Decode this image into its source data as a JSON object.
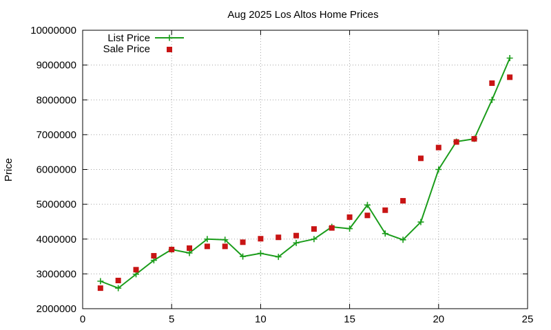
{
  "chart_data": {
    "type": "line",
    "title": "Aug 2025 Los Altos Home Prices",
    "xlabel": "",
    "ylabel": "Price",
    "xlim": [
      0,
      25
    ],
    "ylim": [
      2000000,
      10000000
    ],
    "xticks": [
      0,
      5,
      10,
      15,
      20,
      25
    ],
    "yticks": [
      2000000,
      3000000,
      4000000,
      5000000,
      6000000,
      7000000,
      8000000,
      9000000,
      10000000
    ],
    "xtick_labels": [
      "0",
      "5",
      "10",
      "15",
      "20",
      "25"
    ],
    "ytick_labels": [
      "2000000",
      "3000000",
      "4000000",
      "5000000",
      "6000000",
      "7000000",
      "8000000",
      "9000000",
      "10000000"
    ],
    "grid": true,
    "legend_position": "top-left",
    "series": [
      {
        "name": "List Price",
        "style": "line-plus",
        "color": "#1a9c1a",
        "x": [
          1,
          2,
          3,
          4,
          5,
          6,
          7,
          8,
          9,
          10,
          11,
          12,
          13,
          14,
          15,
          16,
          17,
          18,
          19,
          20,
          21,
          22,
          23,
          24
        ],
        "values": [
          2790000,
          2590000,
          2990000,
          3390000,
          3700000,
          3600000,
          4000000,
          3980000,
          3500000,
          3590000,
          3490000,
          3890000,
          4000000,
          4350000,
          4300000,
          4980000,
          4160000,
          3980000,
          4490000,
          6000000,
          6800000,
          6880000,
          8000000,
          9200000
        ]
      },
      {
        "name": "Sale Price",
        "style": "points-square",
        "color": "#c81414",
        "x": [
          1,
          2,
          3,
          4,
          5,
          6,
          7,
          8,
          9,
          10,
          11,
          12,
          13,
          14,
          15,
          16,
          17,
          18,
          19,
          20,
          21,
          22,
          23,
          24
        ],
        "values": [
          2590000,
          2810000,
          3120000,
          3520000,
          3700000,
          3740000,
          3790000,
          3790000,
          3910000,
          4010000,
          4050000,
          4100000,
          4290000,
          4320000,
          4630000,
          4680000,
          4830000,
          5100000,
          6320000,
          6630000,
          6790000,
          6880000,
          8480000,
          8650000
        ]
      }
    ]
  }
}
